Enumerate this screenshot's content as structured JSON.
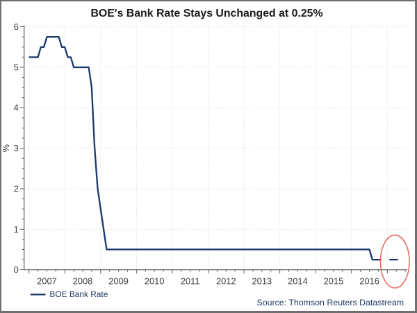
{
  "chart_data": {
    "type": "line",
    "title": "BOE's Bank Rate Stays Unchanged at 0.25%",
    "xlabel": "",
    "ylabel": "%",
    "ylim": [
      0,
      6
    ],
    "y_tick_labels": [
      "0",
      "1",
      "2",
      "3",
      "4",
      "5",
      "6"
    ],
    "y_minor_tick_step": 0.25,
    "x_tick_labels": [
      "2007",
      "2008",
      "2009",
      "2010",
      "2011",
      "2012",
      "2013",
      "2014",
      "2015",
      "2016"
    ],
    "x_minor_ticks_per_year": 4,
    "grid": "dotted",
    "legend": {
      "position": "bottom-left",
      "entries": [
        {
          "label": "BOE Bank Rate",
          "color": "#1e3d6e"
        }
      ]
    },
    "source_note": "Source: Thomson Reuters Datastream",
    "series": [
      {
        "name": "BOE Bank Rate",
        "color": "#1e3d6e",
        "points": [
          [
            "2007-01",
            5.25
          ],
          [
            "2007-04",
            5.25
          ],
          [
            "2007-05",
            5.5
          ],
          [
            "2007-06",
            5.5
          ],
          [
            "2007-07",
            5.75
          ],
          [
            "2007-11",
            5.75
          ],
          [
            "2007-12",
            5.5
          ],
          [
            "2008-01",
            5.5
          ],
          [
            "2008-02",
            5.25
          ],
          [
            "2008-03",
            5.25
          ],
          [
            "2008-04",
            5.0
          ],
          [
            "2008-09",
            5.0
          ],
          [
            "2008-10",
            4.5
          ],
          [
            "2008-11",
            3.0
          ],
          [
            "2008-12",
            2.0
          ],
          [
            "2009-01",
            1.5
          ],
          [
            "2009-02",
            1.0
          ],
          [
            "2009-03",
            0.5
          ],
          [
            "2016-07",
            0.5
          ],
          [
            "2016-08",
            0.25
          ],
          [
            "2016-11",
            0.25
          ]
        ]
      }
    ],
    "end_dash": {
      "value": 0.25,
      "description": "detached short dash after the line showing the latest rate of 0.25%"
    },
    "annotation_ellipse_color": "#e96a62"
  }
}
